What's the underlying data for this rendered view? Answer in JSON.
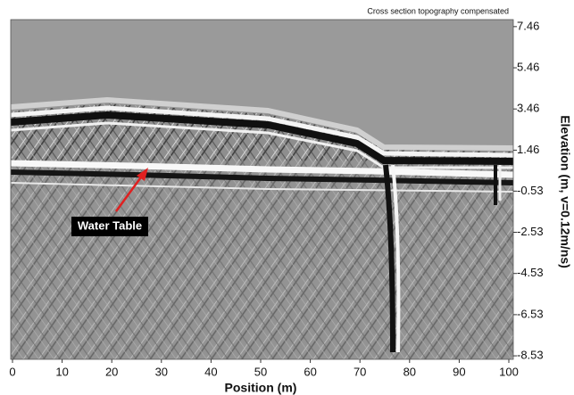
{
  "chart_data": {
    "type": "radargram",
    "title": "Cross section topography compensated",
    "x_label": "Position (m)",
    "y_label": "Elevation (m, v=0.12m/ns)",
    "annotation": "Water Table",
    "xlim": [
      0,
      100
    ],
    "xticks": [
      0,
      10,
      20,
      30,
      40,
      50,
      60,
      70,
      80,
      90,
      100
    ],
    "ylim": [
      -8.7,
      7.8
    ],
    "yticks": [
      7.46,
      5.46,
      3.46,
      1.46,
      -0.53,
      -2.53,
      -4.53,
      -6.53,
      -8.53
    ],
    "y_axis_side": "right",
    "annotation_color": "#e02020"
  }
}
